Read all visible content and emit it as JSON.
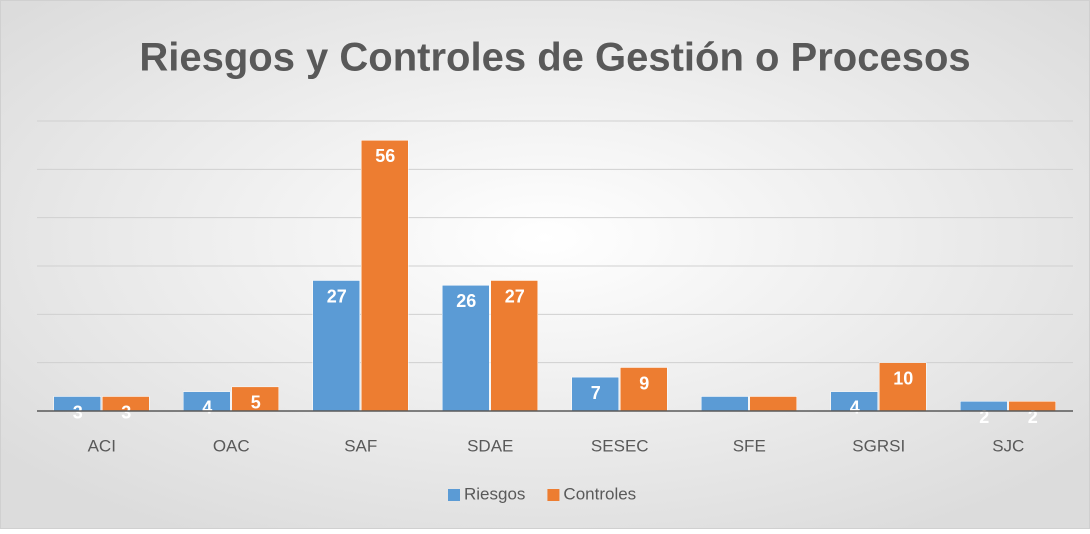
{
  "chart_data": {
    "type": "bar",
    "title": "Riesgos y Controles de Gestión o Procesos",
    "categories": [
      "ACI",
      "OAC",
      "SAF",
      "SDAE",
      "SESEC",
      "SFE",
      "SGRSI",
      "SJC"
    ],
    "series": [
      {
        "name": "Riesgos",
        "color": "#5b9bd5",
        "values": [
          3,
          4,
          27,
          26,
          7,
          3,
          4,
          2
        ],
        "value_labels": [
          "3",
          "4",
          "27",
          "26",
          "7",
          null,
          "4",
          "2"
        ]
      },
      {
        "name": "Controles",
        "color": "#ed7d31",
        "values": [
          3,
          5,
          56,
          27,
          9,
          3,
          10,
          2
        ],
        "value_labels": [
          "3",
          "5",
          "56",
          "27",
          "9",
          null,
          "10",
          "2"
        ]
      }
    ],
    "ylim": [
      0,
      60
    ],
    "yticks": [
      0,
      10,
      20,
      30,
      40,
      50,
      60
    ],
    "grid": true,
    "legend": "bottom"
  }
}
